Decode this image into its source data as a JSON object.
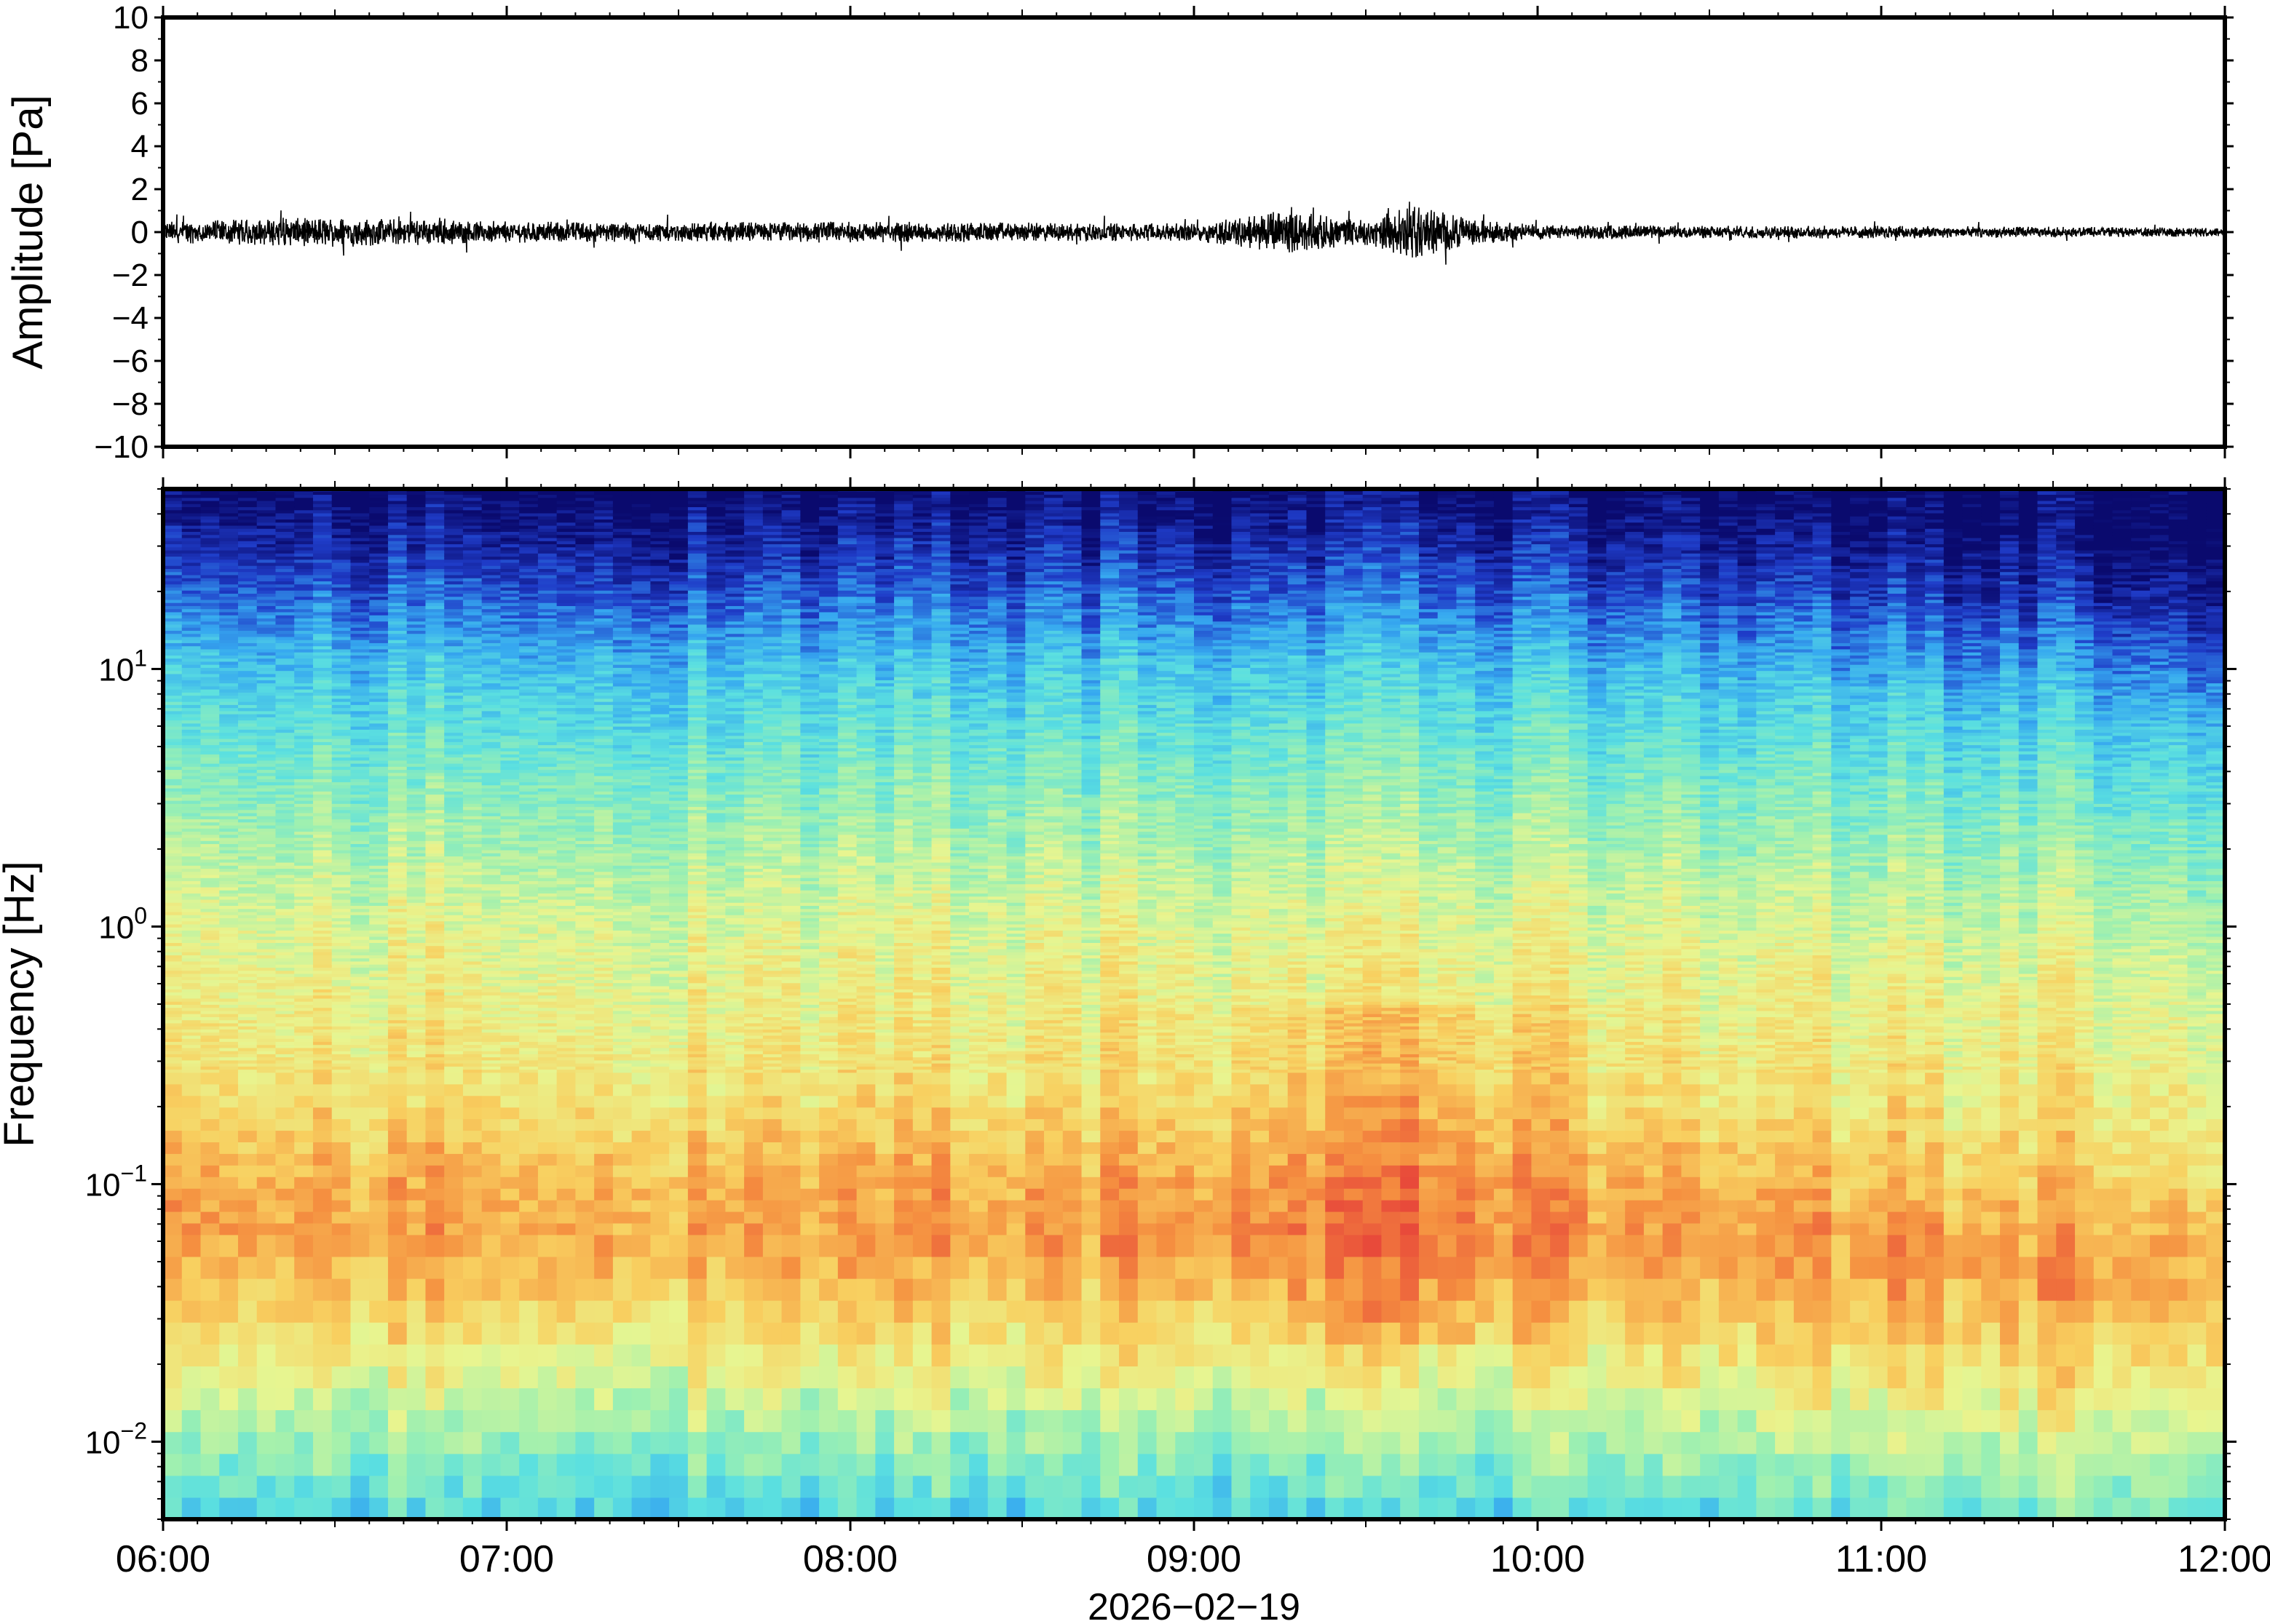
{
  "chart_data": [
    {
      "type": "line",
      "ylabel": "Amplitude [Pa]",
      "ylim": [
        -10,
        10
      ],
      "y_ticks": [
        "10",
        "8",
        "6",
        "4",
        "2",
        "0",
        "−2",
        "−4",
        "−6",
        "−8",
        "−10"
      ],
      "y_tick_values": [
        10,
        8,
        6,
        4,
        2,
        0,
        -2,
        -4,
        -6,
        -8,
        -10
      ],
      "xlim": [
        "06:00",
        "12:00"
      ],
      "grid": false,
      "series": [
        {
          "color": "#000000",
          "envelope_hours": [
            6.0,
            6.5,
            7.0,
            7.5,
            8.0,
            8.5,
            9.0,
            9.25,
            9.5,
            9.65,
            9.8,
            10.0,
            10.5,
            11.0,
            11.5,
            12.0
          ],
          "envelope_amplitude_pa": [
            0.5,
            0.7,
            0.5,
            0.45,
            0.5,
            0.45,
            0.4,
            1.0,
            0.6,
            1.3,
            0.6,
            0.35,
            0.3,
            0.3,
            0.25,
            0.2
          ]
        }
      ]
    },
    {
      "type": "heatmap",
      "ylabel": "Frequency [Hz]",
      "xlabel": "2026−02−19",
      "y_scale": "log",
      "ylim_hz": [
        0.005,
        50
      ],
      "y_ticks": [
        {
          "base": "10",
          "exp": "1",
          "value": 10
        },
        {
          "base": "10",
          "exp": "0",
          "value": 1
        },
        {
          "base": "10",
          "exp": "−1",
          "value": 0.1
        },
        {
          "base": "10",
          "exp": "−2",
          "value": 0.01
        }
      ],
      "x_ticks": [
        "06:00",
        "07:00",
        "08:00",
        "09:00",
        "10:00",
        "11:00",
        "12:00"
      ],
      "x_tick_hours": [
        6,
        7,
        8,
        9,
        10,
        11,
        12
      ],
      "colormap": [
        "#0a0a6e",
        "#1f3cc8",
        "#36a8f0",
        "#5be0e0",
        "#9ef0b0",
        "#e8f590",
        "#f8d060",
        "#f59040",
        "#e84a3a"
      ],
      "relative_power_by_log10_freq": {
        "log10_freq": [
          -2.3,
          -2.0,
          -1.6,
          -1.2,
          -1.0,
          -0.6,
          0.0,
          0.6,
          1.0,
          1.4,
          1.7
        ],
        "level": [
          0.35,
          0.5,
          0.7,
          0.85,
          0.82,
          0.7,
          0.62,
          0.45,
          0.32,
          0.12,
          0.0
        ]
      }
    }
  ]
}
